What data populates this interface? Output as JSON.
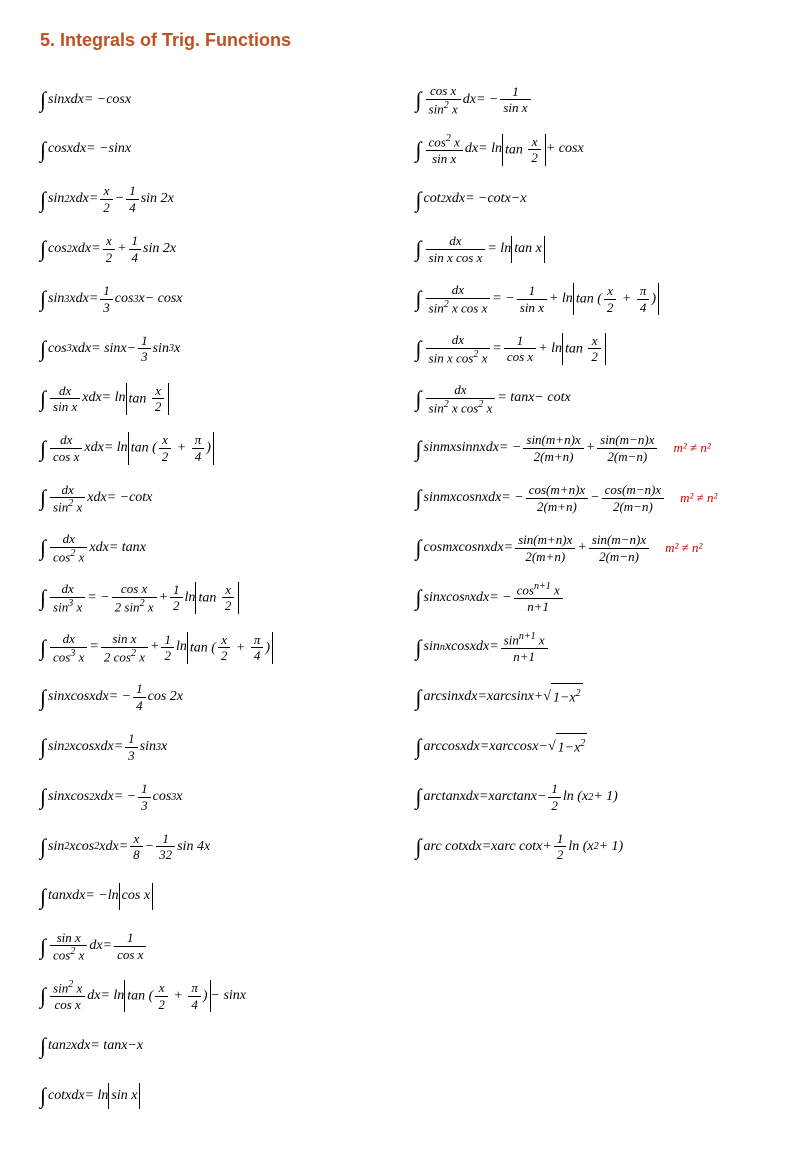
{
  "heading": "5.  Integrals of Trig. Functions",
  "colors": {
    "heading": "#c05020",
    "note": "#d00000",
    "text": "#000000",
    "background": "#ffffff"
  },
  "typography": {
    "heading_font": "Verdana",
    "heading_size_pt": 14,
    "body_font": "Times New Roman",
    "body_size_pt": 11,
    "body_style": "italic"
  },
  "condition_note": "m² ≠ n²",
  "left_column": [
    {
      "id": "f1",
      "integrand": "sin x",
      "result": "−cos x"
    },
    {
      "id": "f2",
      "integrand": "cos x",
      "result": "−sin x"
    },
    {
      "id": "f3",
      "integrand": "sin² x",
      "result": "x/2 − (1/4)sin 2x"
    },
    {
      "id": "f4",
      "integrand": "cos² x",
      "result": "x/2 + (1/4)sin 2x"
    },
    {
      "id": "f5",
      "integrand": "sin³ x",
      "result": "(1/3)cos³ x − cos x"
    },
    {
      "id": "f6",
      "integrand": "cos³ x",
      "result": "sin x − (1/3)sin³ x"
    },
    {
      "id": "f7",
      "integrand": "dx/sin x · x",
      "result": "ln|tan(x/2)|"
    },
    {
      "id": "f8",
      "integrand": "dx/cos x · x",
      "result": "ln|tan(x/2 + π/4)|"
    },
    {
      "id": "f9",
      "integrand": "dx/sin² x · x",
      "result": "−cot x"
    },
    {
      "id": "f10",
      "integrand": "dx/cos² x · x",
      "result": "tan x"
    },
    {
      "id": "f11",
      "integrand": "dx/sin³ x",
      "result": "−cos x/(2sin² x) + (1/2)ln|tan(x/2)|"
    },
    {
      "id": "f12",
      "integrand": "dx/cos³ x",
      "result": "sin x/(2cos² x) + (1/2)ln|tan(x/2 + π/4)|"
    },
    {
      "id": "f13",
      "integrand": "sin x cos x",
      "result": "−(1/4)cos 2x"
    },
    {
      "id": "f14",
      "integrand": "sin² x cos x",
      "result": "(1/3)sin³ x"
    },
    {
      "id": "f15",
      "integrand": "sin x cos² x",
      "result": "−(1/3)cos³ x"
    },
    {
      "id": "f16",
      "integrand": "sin² x cos² x",
      "result": "x/8 − (1/32)sin 4x"
    },
    {
      "id": "f17",
      "integrand": "tan x",
      "result": "−ln|cos x|"
    },
    {
      "id": "f18",
      "integrand": "sin x/cos² x",
      "result": "1/cos x"
    },
    {
      "id": "f19",
      "integrand": "sin² x/cos x",
      "result": "ln|tan(x/2 + π/4)| − sin x"
    },
    {
      "id": "f20",
      "integrand": "tan² x",
      "result": "tan x − x"
    },
    {
      "id": "f21",
      "integrand": "cot x",
      "result": "ln|sin x|"
    }
  ],
  "right_column": [
    {
      "id": "f22",
      "integrand": "cos x/sin² x",
      "result": "−1/sin x"
    },
    {
      "id": "f23",
      "integrand": "cos² x/sin x",
      "result": "ln|tan(x/2)| + cos x"
    },
    {
      "id": "f24",
      "integrand": "cot² x",
      "result": "−cot x − x"
    },
    {
      "id": "f25",
      "integrand": "dx/(sin x cos x)",
      "result": "ln|tan x|"
    },
    {
      "id": "f26",
      "integrand": "dx/(sin² x cos x)",
      "result": "−1/sin x + ln|tan(x/2 + π/4)|"
    },
    {
      "id": "f27",
      "integrand": "dx/(sin x cos² x)",
      "result": "1/cos x + ln|tan(x/2)|"
    },
    {
      "id": "f28",
      "integrand": "dx/(sin² x cos² x)",
      "result": "tan x − cot x"
    },
    {
      "id": "f29",
      "integrand": "sin mx sin nx",
      "result": "−sin(m+n)x/(2(m+n)) + sin(m−n)x/(2(m−n))",
      "note": "m² ≠ n²"
    },
    {
      "id": "f30",
      "integrand": "sin mx cos nx",
      "result": "−cos(m+n)x/(2(m+n)) − cos(m−n)x/(2(m−n))",
      "note": "m² ≠ n²"
    },
    {
      "id": "f31",
      "integrand": "cos mx cos nx",
      "result": "sin(m+n)x/(2(m+n)) + sin(m−n)x/(2(m−n))",
      "note": "m² ≠ n²"
    },
    {
      "id": "f32",
      "integrand": "sin x cosⁿ x",
      "result": "−cosⁿ⁺¹ x/(n+1)"
    },
    {
      "id": "f33",
      "integrand": "sinⁿ x cos x",
      "result": "sinⁿ⁺¹ x/(n+1)"
    },
    {
      "id": "f34",
      "integrand": "arcsin x",
      "result": "x arcsin x + √(1−x²)"
    },
    {
      "id": "f35",
      "integrand": "arccos x",
      "result": "x arccos x − √(1−x²)"
    },
    {
      "id": "f36",
      "integrand": "arctan x",
      "result": "x arctan x − (1/2)ln(x²+1)"
    },
    {
      "id": "f37",
      "integrand": "arccot x",
      "result": "x arccot x + (1/2)ln(x²+1)"
    }
  ]
}
